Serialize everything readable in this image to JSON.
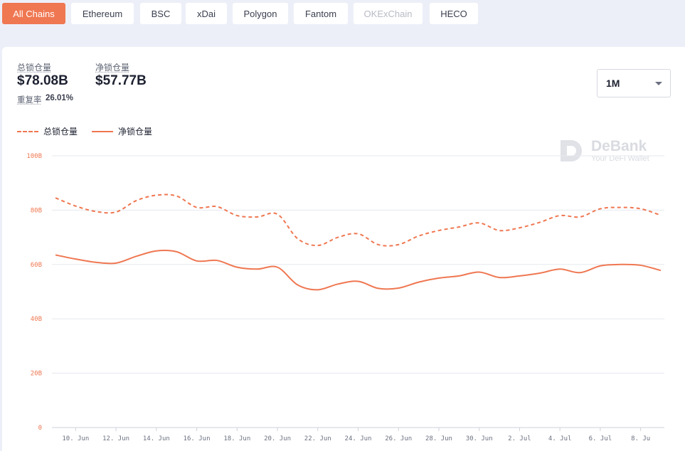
{
  "tabs": [
    {
      "label": "All Chains",
      "state": "active"
    },
    {
      "label": "Ethereum",
      "state": "normal"
    },
    {
      "label": "BSC",
      "state": "normal"
    },
    {
      "label": "xDai",
      "state": "normal"
    },
    {
      "label": "Polygon",
      "state": "normal"
    },
    {
      "label": "Fantom",
      "state": "normal"
    },
    {
      "label": "OKExChain",
      "state": "disabled"
    },
    {
      "label": "HECO",
      "state": "normal"
    }
  ],
  "stats": {
    "total_label": "总锁仓量",
    "total_value": "$78.08B",
    "net_label": "净锁仓量",
    "net_value": "$57.77B",
    "overlap_label": "重复率",
    "overlap_value": "26.01%"
  },
  "range_select": {
    "value": "1M"
  },
  "watermark": {
    "title": "DeBank",
    "subtitle": "Your DeFi Wallet"
  },
  "colors": {
    "accent": "#ef7751",
    "grid": "#e6e8ee",
    "tick": "#ef7751",
    "xtick": "#6b7080"
  },
  "chart_data": {
    "type": "line",
    "x": [
      "9 Jun",
      "10 Jun",
      "11 Jun",
      "12 Jun",
      "13 Jun",
      "14 Jun",
      "15 Jun",
      "16 Jun",
      "17 Jun",
      "18 Jun",
      "19 Jun",
      "20 Jun",
      "21 Jun",
      "22 Jun",
      "23 Jun",
      "24 Jun",
      "25 Jun",
      "26 Jun",
      "27 Jun",
      "28 Jun",
      "29 Jun",
      "30 Jun",
      "1 Jul",
      "2 Jul",
      "3 Jul",
      "4 Jul",
      "5 Jul",
      "6 Jul",
      "7 Jul",
      "8 Jul",
      "9 Jul"
    ],
    "x_ticks": [
      "10. Jun",
      "12. Jun",
      "14. Jun",
      "16. Jun",
      "18. Jun",
      "20. Jun",
      "22. Jun",
      "24. Jun",
      "26. Jun",
      "28. Jun",
      "30. Jun",
      "2. Jul",
      "4. Jul",
      "6. Jul",
      "8. Ju"
    ],
    "y_ticks": [
      "0",
      "20B",
      "40B",
      "60B",
      "80B",
      "100B"
    ],
    "ylim": [
      0,
      100
    ],
    "unit": "B",
    "legend_position": "top-left",
    "grid": true,
    "series": [
      {
        "name": "总锁仓量",
        "style": "dashed",
        "values": [
          84.5,
          81.5,
          79.5,
          79.3,
          83.5,
          85.5,
          85.2,
          81.0,
          81.3,
          78.0,
          77.5,
          78.5,
          69.5,
          67.0,
          70.0,
          71.3,
          67.3,
          67.3,
          70.5,
          72.5,
          73.8,
          75.3,
          72.5,
          73.5,
          75.5,
          78.0,
          77.5,
          80.5,
          81.0,
          80.5,
          78.1
        ]
      },
      {
        "name": "净锁仓量",
        "style": "solid",
        "values": [
          63.5,
          62.0,
          60.8,
          60.5,
          63.0,
          65.0,
          64.7,
          61.3,
          61.5,
          59.0,
          58.3,
          59.0,
          52.5,
          50.7,
          52.8,
          53.8,
          51.2,
          51.3,
          53.5,
          55.0,
          55.8,
          57.2,
          55.2,
          55.8,
          56.8,
          58.3,
          57.0,
          59.5,
          60.0,
          59.7,
          57.8
        ]
      }
    ]
  }
}
